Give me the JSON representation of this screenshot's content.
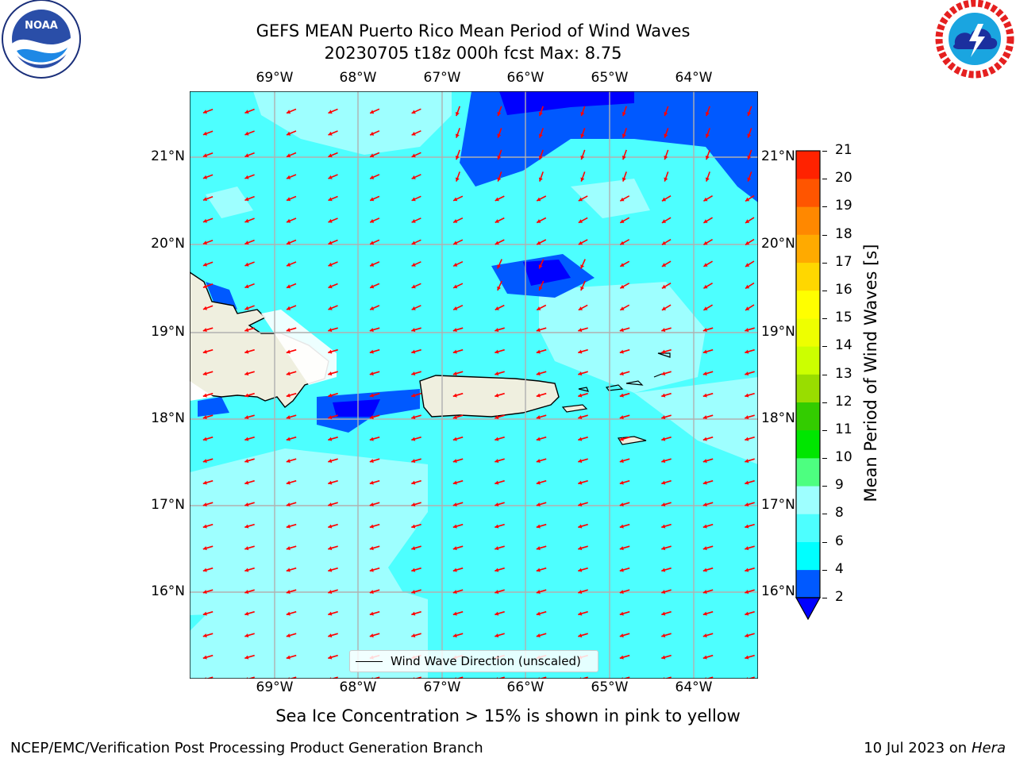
{
  "header": {
    "title_line1": "GEFS MEAN Puerto Rico Mean Period of Wind Waves",
    "title_line2": "20230705 t18z 000h fcst   Max: 8.75"
  },
  "logos": {
    "left_name": "noaa-logo",
    "left_text": "NOAA",
    "right_name": "nws-logo"
  },
  "map": {
    "lon_labels": [
      "69°W",
      "68°W",
      "67°W",
      "66°W",
      "65°W",
      "64°W"
    ],
    "lat_labels": [
      "21°N",
      "20°N",
      "19°N",
      "18°N",
      "17°N",
      "16°N"
    ],
    "land_color": "#efefdf",
    "arrow_color": "#ff0000",
    "grid_color": "#b0b0b0"
  },
  "legend": {
    "label": "Wind Wave Direction (unscaled)"
  },
  "colorbar": {
    "label": "Mean Period of Wind Waves [s]",
    "ticks": [
      "2",
      "4",
      "6",
      "8",
      "9",
      "10",
      "11",
      "12",
      "13",
      "14",
      "15",
      "16",
      "17",
      "18",
      "19",
      "20",
      "21"
    ],
    "colors": [
      "#0059ff",
      "#00ffff",
      "#4dffff",
      "#9effff",
      "#4dff80",
      "#00e600",
      "#33cc00",
      "#99dd00",
      "#ccff00",
      "#eeff00",
      "#ffff00",
      "#ffd700",
      "#ffaa00",
      "#ff8800",
      "#ff5500",
      "#ff2200",
      "#ff0000"
    ],
    "under_color": "#0000ff"
  },
  "caption": "Sea Ice Concentration > 15% is shown in pink to yellow",
  "footer": {
    "left": "NCEP/EMC/Verification Post Processing Product Generation Branch",
    "right_date": "10 Jul 2023 on",
    "right_machine": "Hera"
  }
}
